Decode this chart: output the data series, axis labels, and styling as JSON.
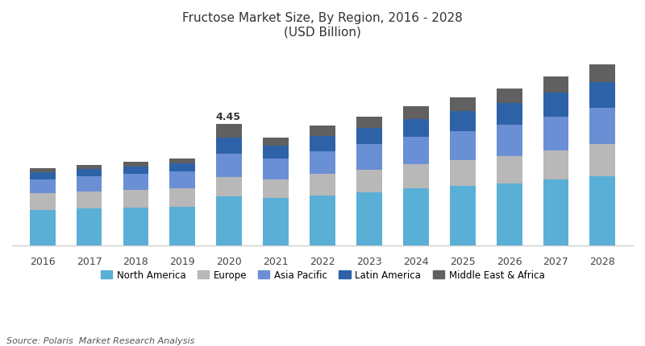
{
  "title_line1": "Fructose Market Size, By Region, 2016 - 2028",
  "title_line2": "(USD Billion)",
  "source": "Source: Polaris  Market Research Analysis",
  "years": [
    2016,
    2017,
    2018,
    2019,
    2020,
    2021,
    2022,
    2023,
    2024,
    2025,
    2026,
    2027,
    2028
  ],
  "annotation_year": 2020,
  "annotation_text": "4.45",
  "regions": [
    "North America",
    "Europe",
    "Asia Pacific",
    "Latin America",
    "Middle East & Africa"
  ],
  "colors": [
    "#5aafd6",
    "#b8b8b8",
    "#6b8fd4",
    "#2e62a8",
    "#606060"
  ],
  "data": {
    "North America": [
      1.3,
      1.35,
      1.38,
      1.42,
      1.78,
      1.72,
      1.82,
      1.95,
      2.08,
      2.18,
      2.25,
      2.4,
      2.52
    ],
    "Europe": [
      0.6,
      0.62,
      0.65,
      0.67,
      0.72,
      0.7,
      0.78,
      0.82,
      0.88,
      0.92,
      1.0,
      1.08,
      1.18
    ],
    "Asia Pacific": [
      0.52,
      0.55,
      0.58,
      0.6,
      0.85,
      0.75,
      0.85,
      0.92,
      1.0,
      1.08,
      1.15,
      1.22,
      1.32
    ],
    "Latin America": [
      0.26,
      0.27,
      0.28,
      0.3,
      0.6,
      0.48,
      0.55,
      0.6,
      0.65,
      0.72,
      0.8,
      0.88,
      0.96
    ],
    "Middle East & Africa": [
      0.14,
      0.15,
      0.16,
      0.17,
      0.5,
      0.3,
      0.38,
      0.42,
      0.46,
      0.5,
      0.52,
      0.58,
      0.64
    ]
  },
  "ylim": [
    0,
    7.2
  ],
  "bar_width": 0.55,
  "background_color": "#ffffff",
  "grid_color": "#e5e5e5"
}
